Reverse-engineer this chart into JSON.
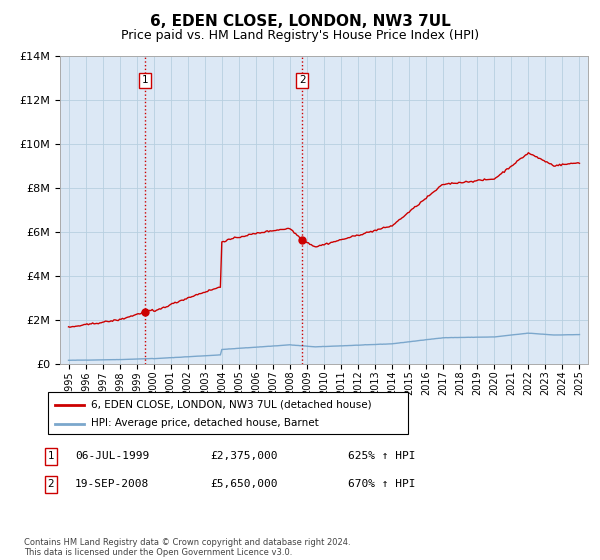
{
  "title": "6, EDEN CLOSE, LONDON, NW3 7UL",
  "subtitle": "Price paid vs. HM Land Registry's House Price Index (HPI)",
  "title_fontsize": 11,
  "subtitle_fontsize": 9,
  "ylim": [
    0,
    14000000
  ],
  "yticks": [
    0,
    2000000,
    4000000,
    6000000,
    8000000,
    10000000,
    12000000,
    14000000
  ],
  "ytick_labels": [
    "£0",
    "£2M",
    "£4M",
    "£6M",
    "£8M",
    "£10M",
    "£12M",
    "£14M"
  ],
  "xlabel_years": [
    "1995",
    "1996",
    "1997",
    "1998",
    "1999",
    "2000",
    "2001",
    "2002",
    "2003",
    "2004",
    "2005",
    "2006",
    "2007",
    "2008",
    "2009",
    "2010",
    "2011",
    "2012",
    "2013",
    "2014",
    "2015",
    "2016",
    "2017",
    "2018",
    "2019",
    "2020",
    "2021",
    "2022",
    "2023",
    "2024",
    "2025"
  ],
  "sale1_date": "06-JUL-1999",
  "sale1_price": 2375000,
  "sale1_pct": "625% ↑ HPI",
  "sale1_label": "1",
  "sale1_year": 1999.5,
  "sale2_date": "19-SEP-2008",
  "sale2_price": 5650000,
  "sale2_label": "2",
  "sale2_pct": "670% ↑ HPI",
  "sale2_year": 2008.72,
  "line_color_house": "#cc0000",
  "line_color_hpi": "#7ba7cc",
  "vline_color": "#cc0000",
  "legend_house": "6, EDEN CLOSE, LONDON, NW3 7UL (detached house)",
  "legend_hpi": "HPI: Average price, detached house, Barnet",
  "footer": "Contains HM Land Registry data © Crown copyright and database right 2024.\nThis data is licensed under the Open Government Licence v3.0.",
  "background_color": "#ffffff",
  "plot_bg_color": "#dce8f5",
  "grid_color": "#b8cfe0"
}
